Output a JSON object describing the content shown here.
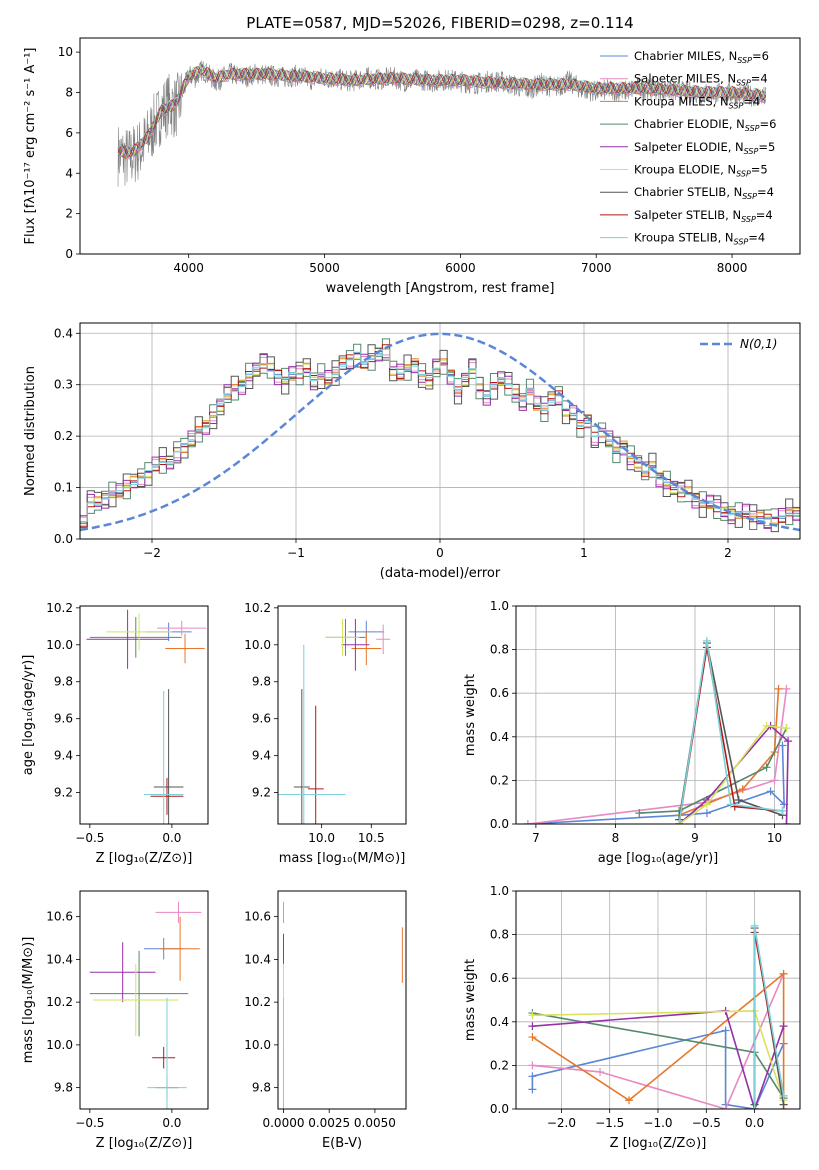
{
  "title": "PLATE=0587, MJD=52026, FIBERID=0298, z=0.114",
  "series_styles": [
    {
      "name": "Chabrier MILES, N$_{SSP}$=6",
      "color": "#5b87d6"
    },
    {
      "name": "Salpeter MILES, N$_{SSP}$=4",
      "color": "#e789c2"
    },
    {
      "name": "Kroupa MILES, N$_{SSP}$=4",
      "color": "#e6772a"
    },
    {
      "name": "Chabrier ELODIE, N$_{SSP}$=6",
      "color": "#55896b"
    },
    {
      "name": "Salpeter ELODIE, N$_{SSP}$=5",
      "color": "#9430a8"
    },
    {
      "name": "Kroupa ELODIE, N$_{SSP}$=5",
      "color": "#d6e35c"
    },
    {
      "name": "Chabrier STELIB, N$_{SSP}$=4",
      "color": "#555555"
    },
    {
      "name": "Salpeter STELIB, N$_{SSP}$=4",
      "color": "#b01a1a"
    },
    {
      "name": "Kroupa STELIB, N$_{SSP}$=4",
      "color": "#7ed0d9"
    }
  ],
  "legend_labels": [
    {
      "pre": "Chabrier MILES, N",
      "sub": "SSP",
      "post": "=6"
    },
    {
      "pre": "Salpeter MILES, N",
      "sub": "SSP",
      "post": "=4"
    },
    {
      "pre": "Kroupa MILES, N",
      "sub": "SSP",
      "post": "=4"
    },
    {
      "pre": "Chabrier ELODIE, N",
      "sub": "SSP",
      "post": "=6"
    },
    {
      "pre": "Salpeter ELODIE, N",
      "sub": "SSP",
      "post": "=5"
    },
    {
      "pre": "Kroupa ELODIE, N",
      "sub": "SSP",
      "post": "=5"
    },
    {
      "pre": "Chabrier STELIB, N",
      "sub": "SSP",
      "post": "=4"
    },
    {
      "pre": "Salpeter STELIB, N",
      "sub": "SSP",
      "post": "=4"
    },
    {
      "pre": "Kroupa STELIB, N",
      "sub": "SSP",
      "post": "=4"
    }
  ],
  "chart_data": [
    {
      "id": "spectrum",
      "type": "line",
      "xlabel": "wavelength [Angstrom, rest frame]",
      "ylabel": "Flux [fλ10⁻¹⁷ erg cm⁻² s⁻¹ A⁻¹]",
      "xlim": [
        3200,
        8500
      ],
      "ylim": [
        0,
        10.7
      ],
      "xticks": [
        4000,
        5000,
        6000,
        7000,
        8000
      ],
      "yticks": [
        0,
        2,
        4,
        6,
        8,
        10
      ],
      "legend": "right",
      "data_curve": {
        "color": "#808080",
        "x": [
          3480,
          3520,
          3560,
          3600,
          3650,
          3700,
          3750,
          3800,
          3850,
          3900,
          3950,
          4000,
          4050,
          4100,
          4200,
          4300,
          4400,
          4500,
          4600,
          4700,
          4800,
          4900,
          5000,
          5100,
          5200,
          5300,
          5400,
          5500,
          5600,
          5700,
          5800,
          5900,
          6000,
          6100,
          6200,
          6300,
          6400,
          6500,
          6600,
          6700,
          6800,
          6900,
          7000,
          7100,
          7200,
          7300,
          7400,
          7500,
          7600,
          7700,
          7800,
          7900,
          8000,
          8100,
          8200,
          8250
        ],
        "y": [
          5.1,
          5.0,
          4.9,
          5.1,
          5.4,
          5.9,
          6.6,
          7.2,
          7.6,
          7.4,
          7.9,
          8.9,
          8.8,
          9.2,
          8.6,
          9.0,
          8.8,
          9.0,
          8.9,
          8.8,
          8.9,
          8.7,
          8.8,
          8.7,
          8.6,
          8.8,
          8.7,
          8.8,
          8.6,
          8.7,
          8.6,
          8.7,
          8.6,
          8.5,
          8.6,
          8.6,
          8.4,
          8.2,
          8.5,
          8.3,
          8.6,
          8.2,
          8.1,
          8.2,
          8.1,
          8.3,
          8.2,
          8.2,
          8.1,
          8.1,
          8.0,
          8.0,
          8.0,
          7.9,
          7.9,
          7.8
        ]
      },
      "model_curve": {
        "color": "#7ed0d9",
        "x": [
          3480,
          3550,
          3600,
          3700,
          3800,
          3900,
          4000,
          4100,
          4200,
          4300,
          4400,
          4600,
          4800,
          5000,
          5200,
          5500,
          5800,
          6000,
          6200,
          6500,
          6800,
          7000,
          7200,
          7400,
          7600,
          7800,
          8000,
          8250
        ],
        "y": [
          5.1,
          5.0,
          5.1,
          5.8,
          7.1,
          7.4,
          8.8,
          9.1,
          8.7,
          8.9,
          8.9,
          8.9,
          8.8,
          8.7,
          8.6,
          8.7,
          8.6,
          8.6,
          8.5,
          8.4,
          8.4,
          8.2,
          8.2,
          8.2,
          8.1,
          8.0,
          8.0,
          7.8
        ]
      }
    },
    {
      "id": "residual_hist",
      "type": "histogram",
      "xlabel": "(data-model)/error",
      "ylabel": "Normed distribution",
      "xlim": [
        -2.5,
        2.5
      ],
      "ylim": [
        0,
        0.42
      ],
      "xticks": [
        -2,
        -1,
        0,
        1,
        2
      ],
      "yticks": [
        0.0,
        0.1,
        0.2,
        0.3,
        0.4
      ],
      "grid": true,
      "legend": "top-right",
      "reference_curve": {
        "name": "N(0,1)",
        "color": "#5b87d6",
        "style": "dashed"
      },
      "bin_width": 0.1,
      "histogram_top": [
        0.03,
        0.07,
        0.07,
        0.08,
        0.09,
        0.09,
        0.1,
        0.11,
        0.12,
        0.13,
        0.14,
        0.15,
        0.15,
        0.17,
        0.18,
        0.19,
        0.21,
        0.22,
        0.24,
        0.26,
        0.28,
        0.29,
        0.3,
        0.32,
        0.33,
        0.34,
        0.33,
        0.32,
        0.31,
        0.32,
        0.32,
        0.33,
        0.31,
        0.32,
        0.31,
        0.32,
        0.34,
        0.35,
        0.36,
        0.34,
        0.35,
        0.36,
        0.37,
        0.33,
        0.32,
        0.33,
        0.34,
        0.32,
        0.31,
        0.33,
        0.34,
        0.32,
        0.29,
        0.31,
        0.33,
        0.29,
        0.28,
        0.3,
        0.31,
        0.3,
        0.28,
        0.27,
        0.29,
        0.26,
        0.25,
        0.27,
        0.28,
        0.25,
        0.24,
        0.22,
        0.23,
        0.2,
        0.21,
        0.19,
        0.17,
        0.18,
        0.16,
        0.15,
        0.13,
        0.14,
        0.12,
        0.11,
        0.1,
        0.09,
        0.09,
        0.08,
        0.07,
        0.07,
        0.06,
        0.05,
        0.05,
        0.05,
        0.05,
        0.04,
        0.04,
        0.04,
        0.04,
        0.04,
        0.05,
        0.05
      ],
      "histogram_offsets": [
        0,
        0.015,
        -0.012,
        0.022,
        -0.02,
        0.01,
        0.028,
        -0.008,
        0.004
      ]
    },
    {
      "id": "z_vs_age",
      "type": "errorbar",
      "xlabel": "Z [log₁₀(Z/Z⊙)]",
      "ylabel": "age  [log₁₀(age/yr)]",
      "xlim": [
        -0.56,
        0.22
      ],
      "ylim": [
        9.03,
        10.21
      ],
      "xticks": [
        -0.5,
        0.0
      ],
      "yticks": [
        9.2,
        9.4,
        9.6,
        9.8,
        10.0,
        10.2
      ],
      "points": [
        {
          "s": 0,
          "x": -0.02,
          "y": 10.07,
          "xerr": 0.14,
          "yerr": 0.05
        },
        {
          "s": 1,
          "x": 0.06,
          "y": 10.09,
          "xerr": 0.15,
          "yerr": 0.04
        },
        {
          "s": 2,
          "x": 0.08,
          "y": 9.98,
          "xerr": 0.12,
          "yerr": 0.08
        },
        {
          "s": 3,
          "x": -0.22,
          "y": 10.04,
          "xerr": 0.28,
          "yerr": 0.11
        },
        {
          "s": 4,
          "x": -0.27,
          "y": 10.03,
          "xerr": 0.25,
          "yerr": 0.16
        },
        {
          "s": 5,
          "x": -0.2,
          "y": 10.07,
          "xerr": 0.2,
          "yerr": 0.1
        },
        {
          "s": 6,
          "x": -0.02,
          "y": 9.23,
          "xerr": 0.09,
          "yerr": 0.53
        },
        {
          "s": 7,
          "x": -0.03,
          "y": 9.18,
          "xerr": 0.1,
          "yerr": 0.1
        },
        {
          "s": 8,
          "x": -0.05,
          "y": 9.19,
          "xerr": 0.12,
          "yerr": 0.56
        }
      ]
    },
    {
      "id": "mass_vs_age",
      "type": "errorbar",
      "xlabel": "mass [log₁₀(M/M⊙)]",
      "xlim": [
        9.56,
        10.85
      ],
      "ylim": [
        9.03,
        10.21
      ],
      "xticks": [
        10.0,
        10.5
      ],
      "yticks": [
        9.2,
        9.4,
        9.6,
        9.8,
        10.0,
        10.2
      ],
      "points": [
        {
          "s": 0,
          "x": 10.45,
          "y": 10.07,
          "xerr": 0.18,
          "yerr": 0.06
        },
        {
          "s": 1,
          "x": 10.62,
          "y": 10.03,
          "xerr": 0.07,
          "yerr": 0.08
        },
        {
          "s": 2,
          "x": 10.45,
          "y": 9.98,
          "xerr": 0.15,
          "yerr": 0.09
        },
        {
          "s": 3,
          "x": 10.24,
          "y": 10.04,
          "xerr": 0.2,
          "yerr": 0.1
        },
        {
          "s": 4,
          "x": 10.34,
          "y": 10.0,
          "xerr": 0.14,
          "yerr": 0.14
        },
        {
          "s": 5,
          "x": 10.21,
          "y": 10.04,
          "xerr": 0.17,
          "yerr": 0.1
        },
        {
          "s": 6,
          "x": 9.8,
          "y": 9.23,
          "xerr": 0.08,
          "yerr": 0.53
        },
        {
          "s": 7,
          "x": 9.94,
          "y": 9.22,
          "xerr": 0.08,
          "yerr": 0.45
        },
        {
          "s": 8,
          "x": 9.82,
          "y": 9.19,
          "xerr": 0.42,
          "yerr": 0.81
        }
      ]
    },
    {
      "id": "age_vs_weight",
      "type": "line",
      "xlabel": "age  [log₁₀(age/yr)]",
      "ylabel": "mass weight",
      "xlim": [
        6.75,
        10.32
      ],
      "ylim": [
        0,
        1
      ],
      "xticks": [
        7,
        8,
        9,
        10
      ],
      "yticks": [
        0.0,
        0.2,
        0.4,
        0.6,
        0.8,
        1.0
      ],
      "grid": true,
      "series": [
        {
          "s": 0,
          "x": [
            6.9,
            8.8,
            9.15,
            9.95,
            10.12,
            10.1
          ],
          "y": [
            0.0,
            0.04,
            0.05,
            0.15,
            0.09,
            0.36
          ]
        },
        {
          "s": 1,
          "x": [
            6.9,
            9.15,
            10.0,
            10.15
          ],
          "y": [
            0.0,
            0.1,
            0.2,
            0.62
          ]
        },
        {
          "s": 2,
          "x": [
            8.8,
            9.6,
            10.0,
            10.05
          ],
          "y": [
            0.04,
            0.16,
            0.33,
            0.62
          ]
        },
        {
          "s": 3,
          "x": [
            8.3,
            8.8,
            9.9,
            10.15
          ],
          "y": [
            0.05,
            0.06,
            0.26,
            0.44
          ]
        },
        {
          "s": 4,
          "x": [
            8.8,
            9.15,
            9.95,
            10.17,
            10.15
          ],
          "y": [
            0.0,
            0.11,
            0.45,
            0.38,
            0.0
          ]
        },
        {
          "s": 5,
          "x": [
            8.8,
            9.15,
            9.9,
            10.15
          ],
          "y": [
            0.0,
            0.09,
            0.45,
            0.44
          ]
        },
        {
          "s": 6,
          "x": [
            8.8,
            9.15,
            9.55,
            10.1
          ],
          "y": [
            0.02,
            0.83,
            0.11,
            0.04
          ]
        },
        {
          "s": 7,
          "x": [
            8.8,
            9.15,
            9.5,
            10.1
          ],
          "y": [
            0.0,
            0.81,
            0.08,
            0.06
          ]
        },
        {
          "s": 8,
          "x": [
            8.8,
            9.15,
            9.45,
            10.1
          ],
          "y": [
            0.0,
            0.84,
            0.09,
            0.06
          ]
        }
      ]
    },
    {
      "id": "z_vs_mass",
      "type": "errorbar",
      "xlabel": "Z [log₁₀(Z/Z⊙)]",
      "ylabel": "mass [log₁₀(M/M⊙)]",
      "xlim": [
        -0.56,
        0.22
      ],
      "ylim": [
        9.7,
        10.72
      ],
      "xticks": [
        -0.5,
        0.0
      ],
      "yticks": [
        9.8,
        10.0,
        10.2,
        10.4,
        10.6
      ],
      "points": [
        {
          "s": 0,
          "x": -0.05,
          "y": 10.45,
          "xerr": 0.12,
          "yerr": 0.05
        },
        {
          "s": 1,
          "x": 0.04,
          "y": 10.62,
          "xerr": 0.14,
          "yerr": 0.05
        },
        {
          "s": 2,
          "x": 0.05,
          "y": 10.45,
          "xerr": 0.12,
          "yerr": 0.15
        },
        {
          "s": 3,
          "x": -0.2,
          "y": 10.24,
          "xerr": 0.3,
          "yerr": 0.2
        },
        {
          "s": 4,
          "x": -0.3,
          "y": 10.34,
          "xerr": 0.2,
          "yerr": 0.14
        },
        {
          "s": 5,
          "x": -0.22,
          "y": 10.21,
          "xerr": 0.26,
          "yerr": 0.17
        },
        {
          "s": 6,
          "x": -0.03,
          "y": 9.8,
          "xerr": 0.07,
          "yerr": 0.05
        },
        {
          "s": 7,
          "x": -0.05,
          "y": 9.94,
          "xerr": 0.07,
          "yerr": 0.05
        },
        {
          "s": 8,
          "x": -0.03,
          "y": 9.8,
          "xerr": 0.12,
          "yerr": 0.42
        }
      ]
    },
    {
      "id": "ebv_vs_mass",
      "type": "errorbar",
      "xlabel": "E(B-V)",
      "xlim": [
        -0.0003,
        0.0067
      ],
      "ylim": [
        9.7,
        10.72
      ],
      "xticks": [
        0.0,
        0.0025,
        0.005
      ],
      "xticklabels": [
        "0.0000",
        "0.0025",
        "0.0050"
      ],
      "yticks": [
        9.8,
        10.0,
        10.2,
        10.4,
        10.6
      ],
      "points": [
        {
          "s": 0,
          "x": 0.0,
          "y": 10.45,
          "xerr": 0,
          "yerr": 0.05
        },
        {
          "s": 1,
          "x": 0.0,
          "y": 10.62,
          "xerr": 0,
          "yerr": 0.05
        },
        {
          "s": 2,
          "x": 0.0065,
          "y": 10.42,
          "xerr": 0,
          "yerr": 0.13
        },
        {
          "s": 3,
          "x": 0.0,
          "y": 10.24,
          "xerr": 0,
          "yerr": 0.2
        },
        {
          "s": 4,
          "x": 0.0,
          "y": 10.43,
          "xerr": 0,
          "yerr": 0.09
        },
        {
          "s": 5,
          "x": 0.0,
          "y": 10.21,
          "xerr": 0,
          "yerr": 0.17
        },
        {
          "s": 6,
          "x": 0.0,
          "y": 9.8,
          "xerr": 0,
          "yerr": 0.05
        },
        {
          "s": 7,
          "x": 0.0,
          "y": 9.94,
          "xerr": 0,
          "yerr": 0.05
        },
        {
          "s": 8,
          "x": 0.0,
          "y": 9.8,
          "xerr": 0,
          "yerr": 0.42
        }
      ]
    },
    {
      "id": "z_vs_weight",
      "type": "line",
      "xlabel": "Z [log₁₀(Z/Z⊙)]",
      "ylabel": "mass weight",
      "xlim": [
        -2.47,
        0.47
      ],
      "ylim": [
        0,
        1
      ],
      "xticks": [
        -2.0,
        -1.5,
        -1.0,
        -0.5,
        0.0
      ],
      "yticks": [
        0.0,
        0.2,
        0.4,
        0.6,
        0.8,
        1.0
      ],
      "grid": true,
      "series": [
        {
          "s": 0,
          "x": [
            -2.3,
            -2.3,
            -0.3,
            -0.3,
            0.0,
            0.3
          ],
          "y": [
            0.09,
            0.15,
            0.36,
            0.02,
            0.0,
            0.3
          ]
        },
        {
          "s": 1,
          "x": [
            -2.3,
            -1.6,
            -0.3,
            0.3
          ],
          "y": [
            0.2,
            0.17,
            0.0,
            0.62
          ]
        },
        {
          "s": 2,
          "x": [
            -2.3,
            -1.3,
            0.3,
            0.3
          ],
          "y": [
            0.33,
            0.04,
            0.62,
            0.0
          ]
        },
        {
          "s": 3,
          "x": [
            -2.3,
            0.0,
            0.3
          ],
          "y": [
            0.44,
            0.26,
            0.05
          ]
        },
        {
          "s": 4,
          "x": [
            -2.3,
            -0.3,
            0.0,
            0.3
          ],
          "y": [
            0.38,
            0.45,
            0.0,
            0.38
          ]
        },
        {
          "s": 5,
          "x": [
            -2.3,
            0.0,
            0.3
          ],
          "y": [
            0.43,
            0.45,
            0.04
          ]
        },
        {
          "s": 6,
          "x": [
            0.0,
            0.0,
            0.3
          ],
          "y": [
            0.02,
            0.83,
            0.02
          ]
        },
        {
          "s": 7,
          "x": [
            0.0,
            0.0,
            0.3
          ],
          "y": [
            0.0,
            0.81,
            0.06
          ]
        },
        {
          "s": 8,
          "x": [
            0.0,
            0.0,
            0.3
          ],
          "y": [
            0.0,
            0.84,
            0.06
          ]
        }
      ]
    }
  ]
}
